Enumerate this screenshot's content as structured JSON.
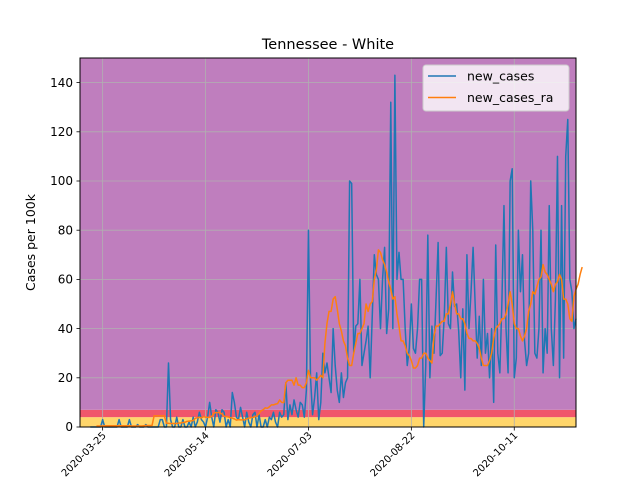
{
  "chart_data": {
    "type": "line",
    "title": "Tennessee - White",
    "xlabel": "",
    "ylabel": "Cases per 100k",
    "ylim": [
      0,
      150
    ],
    "y_ticks": [
      0,
      20,
      40,
      60,
      80,
      100,
      120,
      140
    ],
    "y_tick_labels": [
      "0",
      "20",
      "40",
      "60",
      "80",
      "100",
      "120",
      "140"
    ],
    "x_start_date": "2020-03-14",
    "x_day_range": [
      0,
      241
    ],
    "x_ticks": [
      "2020-03-25",
      "2020-05-14",
      "2020-07-03",
      "2020-08-22",
      "2020-10-11"
    ],
    "x_tick_days": [
      11,
      61,
      111,
      161,
      211
    ],
    "grid": true,
    "legend_position": "top-right",
    "background_bands": [
      {
        "name": "low",
        "from": 0,
        "to": 4,
        "color": "#ffd66b"
      },
      {
        "name": "moderate",
        "from": 4,
        "to": 7,
        "color": "#f0566b"
      },
      {
        "name": "high",
        "from": 7,
        "to": 150,
        "color": "#bf7ebe"
      }
    ],
    "series": [
      {
        "name": "new_cases",
        "color": "#1f77b4",
        "start_day": 5,
        "values": [
          0,
          0,
          0,
          0,
          0,
          0,
          3,
          0,
          0,
          0,
          0,
          0,
          0,
          0,
          3,
          0,
          0,
          0,
          0,
          3,
          0,
          0,
          0,
          1,
          0,
          0,
          0,
          1,
          0,
          0,
          0,
          0,
          0,
          0,
          3,
          3,
          0,
          0,
          26,
          3,
          0,
          0,
          4,
          0,
          0,
          3,
          0,
          0,
          2,
          0,
          4,
          0,
          2,
          6,
          3,
          2,
          0,
          4,
          10,
          4,
          0,
          7,
          6,
          2,
          7,
          6,
          0,
          3,
          0,
          14,
          10,
          4,
          3,
          8,
          4,
          0,
          6,
          2,
          0,
          5,
          6,
          0,
          5,
          0,
          0,
          3,
          0,
          4,
          3,
          6,
          2,
          0,
          6,
          4,
          5,
          18,
          3,
          9,
          5,
          11,
          7,
          4,
          10,
          9,
          4,
          15,
          80,
          20,
          5,
          12,
          22,
          3,
          10,
          30,
          22,
          26,
          20,
          14,
          40,
          25,
          15,
          10,
          22,
          12,
          18,
          20,
          100,
          99,
          30,
          41,
          42,
          60,
          25,
          30,
          35,
          41,
          20,
          45,
          70,
          62,
          60,
          40,
          60,
          73,
          38,
          48,
          132,
          40,
          143,
          60,
          71,
          60,
          60,
          40,
          25,
          32,
          50,
          32,
          30,
          40,
          60,
          60,
          0,
          25,
          78,
          20,
          41,
          30,
          52,
          75,
          29,
          30,
          45,
          73,
          42,
          40,
          63,
          49,
          50,
          39,
          20,
          48,
          15,
          70,
          40,
          55,
          73,
          50,
          28,
          45,
          25,
          60,
          30,
          38,
          20,
          40,
          10,
          74,
          30,
          22,
          51,
          90,
          40,
          22,
          100,
          105,
          20,
          28,
          80,
          55,
          70,
          35,
          25,
          30,
          100,
          80,
          30,
          28,
          40,
          80,
          22,
          40,
          30,
          90,
          40,
          25,
          52,
          110,
          20,
          90,
          28,
          110,
          125,
          60,
          55,
          40,
          44
        ]
      },
      {
        "name": "new_cases_ra",
        "color": "#ff7f0e",
        "start_day": 8,
        "values": [
          0.4,
          0.4,
          0.4,
          0.4,
          0.5,
          0.5,
          0.5,
          0.5,
          0.5,
          0.5,
          0.5,
          0.5,
          0.5,
          0.5,
          0.5,
          0.5,
          0.5,
          0.4,
          0.4,
          0.4,
          0.4,
          0.4,
          0.4,
          0.5,
          0.6,
          0.6,
          0.6,
          0.6,
          4.5,
          4.5,
          4.5,
          4.5,
          4.5,
          4.5,
          1.5,
          1.5,
          1.4,
          1.4,
          1.4,
          1.4,
          1.6,
          1.6,
          1.9,
          1.9,
          2.3,
          2.4,
          2.5,
          2.6,
          3.5,
          3.8,
          3.9,
          3.7,
          4.2,
          4.0,
          3.9,
          3.9,
          4.3,
          5.5,
          5.9,
          5.9,
          5.8,
          5.3,
          4.4,
          4.2,
          4.1,
          3.8,
          3.6,
          3.3,
          2.8,
          3.0,
          2.9,
          2.9,
          2.9,
          3.3,
          3.6,
          3.8,
          3.9,
          4.2,
          4.6,
          5.5,
          6.6,
          7.0,
          7.8,
          7.6,
          8.2,
          9.0,
          9.0,
          9.3,
          9.5,
          11.0,
          10.0,
          9.9,
          18.0,
          19.0,
          19.0,
          19.0,
          17.0,
          20.0,
          17.0,
          17.0,
          16.0,
          16.0,
          18.0,
          23.0,
          20.0,
          20.0,
          20.0,
          19.0,
          20.0,
          21.0,
          20.0,
          34.0,
          42.0,
          47.0,
          47.0,
          52.0,
          53.0,
          48.0,
          42.0,
          39.0,
          35.0,
          33.0,
          28.0,
          25.0,
          25.0,
          30.0,
          34.0,
          38.0,
          38.0,
          40.0,
          42.0,
          50.0,
          47.0,
          50.0,
          51.0,
          60.0,
          64.0,
          72.0,
          71.0,
          68.0,
          66.0,
          63.0,
          59.0,
          56.0,
          52.0,
          53.0,
          46.0,
          41.0,
          35.0,
          35.0,
          33.0,
          30.0,
          29.0,
          27.0,
          24.0,
          24.0,
          25.0,
          28.0,
          28.0,
          30.0,
          30.0,
          28.0,
          27.0,
          26.0,
          37.0,
          41.0,
          41.0,
          42.0,
          43.0,
          43.0,
          46.0,
          46.0,
          50.0,
          55.0,
          50.0,
          46.0,
          46.0,
          44.0,
          44.0,
          42.0,
          38.0,
          36.0,
          36.0,
          35.0,
          35.0,
          34.0,
          32.0,
          28.0,
          25.0,
          25.0,
          25.0,
          27.0,
          30.0,
          36.0,
          40.0,
          41.0,
          42.0,
          44.0,
          44.0,
          46.0,
          50.0,
          55.0,
          50.0,
          42.0,
          40.0,
          40.0,
          37.0,
          35.0,
          37.0,
          40.0,
          47.0,
          50.0,
          55.0,
          54.0,
          57.0,
          60.0,
          61.0,
          66.0,
          63.0,
          62.0,
          60.0,
          58.0,
          55.0,
          58.0,
          59.0,
          62.0,
          60.0,
          52.0,
          52.0,
          50.0,
          44.0,
          43.0,
          53.0,
          56.0,
          58.0,
          62.0,
          65.0
        ]
      }
    ]
  }
}
